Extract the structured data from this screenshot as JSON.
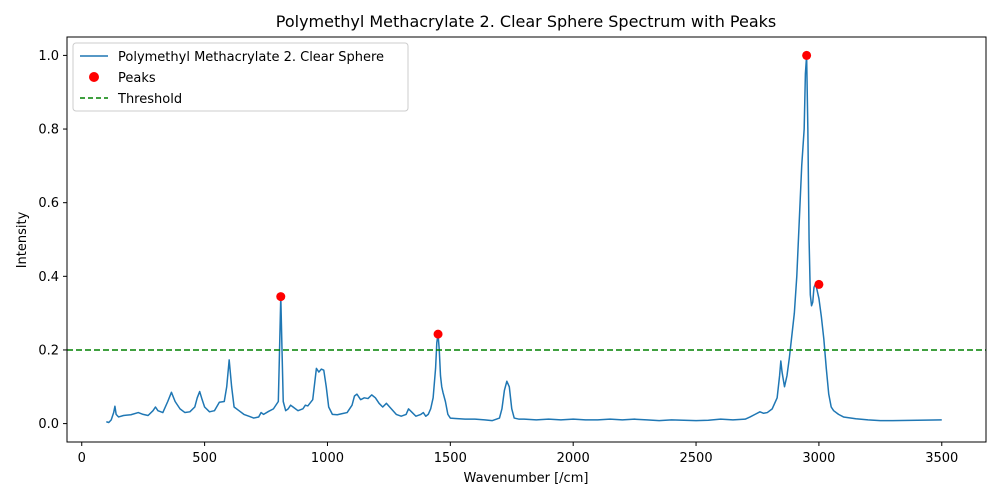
{
  "chart_data": {
    "type": "line",
    "title": "Polymethyl Methacrylate 2. Clear Sphere Spectrum with Peaks",
    "xlabel": "Wavenumber [/cm]",
    "ylabel": "Intensity",
    "xlim": [
      -60,
      3680
    ],
    "ylim": [
      -0.05,
      1.05
    ],
    "x_ticks": [
      0,
      500,
      1000,
      1500,
      2000,
      2500,
      3000,
      3500
    ],
    "y_ticks": [
      0.0,
      0.2,
      0.4,
      0.6,
      0.8,
      1.0
    ],
    "x_tick_labels": [
      "0",
      "500",
      "1000",
      "1500",
      "2000",
      "2500",
      "3000",
      "3500"
    ],
    "y_tick_labels": [
      "0.0",
      "0.2",
      "0.4",
      "0.6",
      "0.8",
      "1.0"
    ],
    "grid": false,
    "legend_position": "top-left",
    "series": [
      {
        "name": "Polymethyl Methacrylate 2. Clear Sphere",
        "kind": "line",
        "color": "#1f77b4",
        "x": [
          100,
          110,
          120,
          130,
          135,
          140,
          150,
          170,
          200,
          230,
          250,
          270,
          290,
          300,
          310,
          330,
          350,
          365,
          380,
          400,
          420,
          440,
          460,
          470,
          480,
          490,
          500,
          520,
          540,
          560,
          580,
          590,
          600,
          610,
          620,
          640,
          660,
          680,
          700,
          720,
          730,
          740,
          760,
          780,
          800,
          805,
          810,
          815,
          820,
          830,
          840,
          850,
          860,
          880,
          900,
          910,
          920,
          940,
          955,
          965,
          975,
          985,
          995,
          1005,
          1020,
          1040,
          1060,
          1080,
          1100,
          1110,
          1120,
          1135,
          1150,
          1165,
          1180,
          1195,
          1210,
          1225,
          1240,
          1260,
          1280,
          1300,
          1320,
          1330,
          1345,
          1360,
          1380,
          1390,
          1400,
          1410,
          1420,
          1430,
          1440,
          1445,
          1450,
          1455,
          1460,
          1465,
          1470,
          1480,
          1490,
          1500,
          1520,
          1560,
          1600,
          1640,
          1670,
          1700,
          1710,
          1720,
          1730,
          1740,
          1750,
          1760,
          1780,
          1800,
          1850,
          1900,
          1950,
          2000,
          2050,
          2100,
          2150,
          2200,
          2250,
          2300,
          2350,
          2400,
          2450,
          2500,
          2550,
          2600,
          2650,
          2700,
          2720,
          2740,
          2760,
          2775,
          2790,
          2810,
          2830,
          2840,
          2845,
          2850,
          2860,
          2870,
          2880,
          2890,
          2900,
          2910,
          2920,
          2930,
          2935,
          2940,
          2945,
          2950,
          2955,
          2960,
          2965,
          2970,
          2975,
          2980,
          2985,
          2990,
          2995,
          3000,
          3010,
          3020,
          3030,
          3040,
          3050,
          3060,
          3080,
          3100,
          3150,
          3200,
          3250,
          3300,
          3400,
          3500
        ],
        "y": [
          0.005,
          0.003,
          0.01,
          0.03,
          0.047,
          0.025,
          0.018,
          0.022,
          0.024,
          0.03,
          0.025,
          0.022,
          0.035,
          0.045,
          0.035,
          0.03,
          0.06,
          0.085,
          0.06,
          0.04,
          0.03,
          0.032,
          0.045,
          0.07,
          0.087,
          0.065,
          0.045,
          0.032,
          0.035,
          0.058,
          0.06,
          0.1,
          0.173,
          0.1,
          0.045,
          0.035,
          0.025,
          0.02,
          0.015,
          0.018,
          0.03,
          0.025,
          0.033,
          0.04,
          0.06,
          0.2,
          0.345,
          0.2,
          0.06,
          0.035,
          0.04,
          0.05,
          0.045,
          0.035,
          0.04,
          0.05,
          0.048,
          0.065,
          0.15,
          0.14,
          0.148,
          0.145,
          0.1,
          0.045,
          0.025,
          0.024,
          0.027,
          0.03,
          0.05,
          0.075,
          0.08,
          0.065,
          0.07,
          0.068,
          0.078,
          0.07,
          0.055,
          0.045,
          0.055,
          0.04,
          0.025,
          0.02,
          0.025,
          0.04,
          0.03,
          0.02,
          0.025,
          0.03,
          0.02,
          0.025,
          0.04,
          0.07,
          0.15,
          0.22,
          0.243,
          0.2,
          0.13,
          0.1,
          0.085,
          0.06,
          0.025,
          0.015,
          0.014,
          0.012,
          0.012,
          0.01,
          0.008,
          0.015,
          0.04,
          0.09,
          0.115,
          0.1,
          0.04,
          0.015,
          0.012,
          0.012,
          0.01,
          0.012,
          0.01,
          0.012,
          0.01,
          0.01,
          0.012,
          0.01,
          0.012,
          0.01,
          0.008,
          0.01,
          0.009,
          0.008,
          0.009,
          0.012,
          0.01,
          0.012,
          0.018,
          0.025,
          0.032,
          0.028,
          0.03,
          0.04,
          0.07,
          0.13,
          0.17,
          0.14,
          0.1,
          0.13,
          0.18,
          0.24,
          0.3,
          0.4,
          0.55,
          0.7,
          0.75,
          0.8,
          0.95,
          1.0,
          0.8,
          0.5,
          0.35,
          0.32,
          0.33,
          0.37,
          0.378,
          0.37,
          0.355,
          0.34,
          0.29,
          0.23,
          0.15,
          0.08,
          0.045,
          0.035,
          0.025,
          0.018,
          0.013,
          0.01,
          0.008,
          0.008,
          0.009,
          0.01
        ]
      },
      {
        "name": "Peaks",
        "kind": "scatter",
        "color": "#ff0000",
        "x": [
          810,
          1450,
          2950,
          3000
        ],
        "y": [
          0.345,
          0.243,
          1.0,
          0.378
        ]
      },
      {
        "name": "Threshold",
        "kind": "hline",
        "color": "#008000",
        "value": 0.2
      }
    ]
  }
}
